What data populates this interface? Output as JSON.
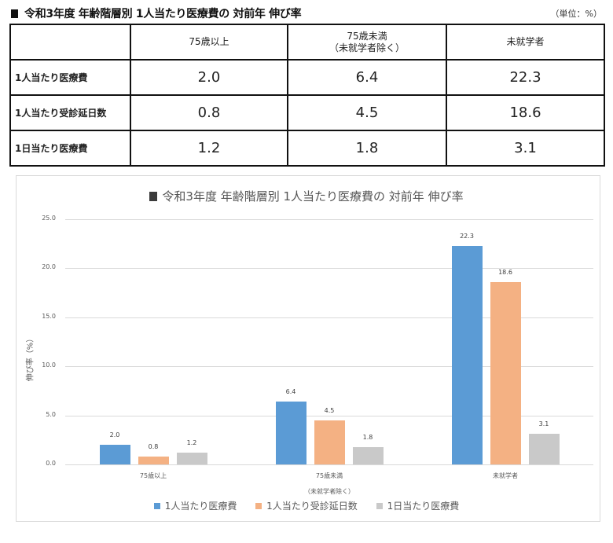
{
  "header": {
    "title": "令和3年度 年齢階層別 1人当たり医療費の 対前年 伸び率",
    "unit": "（単位：%）"
  },
  "table": {
    "columns": [
      "",
      "75歳以上",
      "75歳未満\n（未就学者除く）",
      "未就学者"
    ],
    "column_lines": [
      [
        "75歳以上"
      ],
      [
        "75歳未満",
        "（未就学者除く）"
      ],
      [
        "未就学者"
      ]
    ],
    "rows": [
      {
        "label": "1人当たり医療費",
        "values": [
          "2.0",
          "6.4",
          "22.3"
        ]
      },
      {
        "label": "1人当たり受診延日数",
        "values": [
          "0.8",
          "4.5",
          "18.6"
        ]
      },
      {
        "label": "1日当たり医療費",
        "values": [
          "1.2",
          "1.8",
          "3.1"
        ]
      }
    ]
  },
  "chart": {
    "title": "令和3年度 年齢階層別 1人当たり医療費の 対前年 伸び率",
    "ylabel": "伸び率（%）",
    "yticks": [
      "25.0",
      "20.0",
      "15.0",
      "10.0",
      "5.0",
      "0.0"
    ],
    "categories": [
      {
        "line1": "75歳以上",
        "line2": ""
      },
      {
        "line1": "75歳未満",
        "line2": "（未就学者除く）"
      },
      {
        "line1": "未就学者",
        "line2": ""
      }
    ],
    "legend": [
      "1人当たり医療費",
      "1人当たり受診延日数",
      "1日当たり医療費"
    ],
    "colors": {
      "series1": "#5b9bd5",
      "series2": "#f4b183",
      "series3": "#c9c9c9"
    }
  },
  "chart_data": {
    "type": "bar",
    "title": "令和3年度 年齢階層別 1人当たり医療費の 対前年 伸び率",
    "xlabel": "",
    "ylabel": "伸び率（%）",
    "ylim": [
      0,
      25
    ],
    "yticks": [
      0,
      5,
      10,
      15,
      20,
      25
    ],
    "grid": true,
    "legend_position": "bottom",
    "categories": [
      "75歳以上",
      "75歳未満（未就学者除く）",
      "未就学者"
    ],
    "series": [
      {
        "name": "1人当たり医療費",
        "color": "#5b9bd5",
        "values": [
          2.0,
          6.4,
          22.3
        ]
      },
      {
        "name": "1人当たり受診延日数",
        "color": "#f4b183",
        "values": [
          0.8,
          4.5,
          18.6
        ]
      },
      {
        "name": "1日当たり医療費",
        "color": "#c9c9c9",
        "values": [
          1.2,
          1.8,
          3.1
        ]
      }
    ]
  }
}
